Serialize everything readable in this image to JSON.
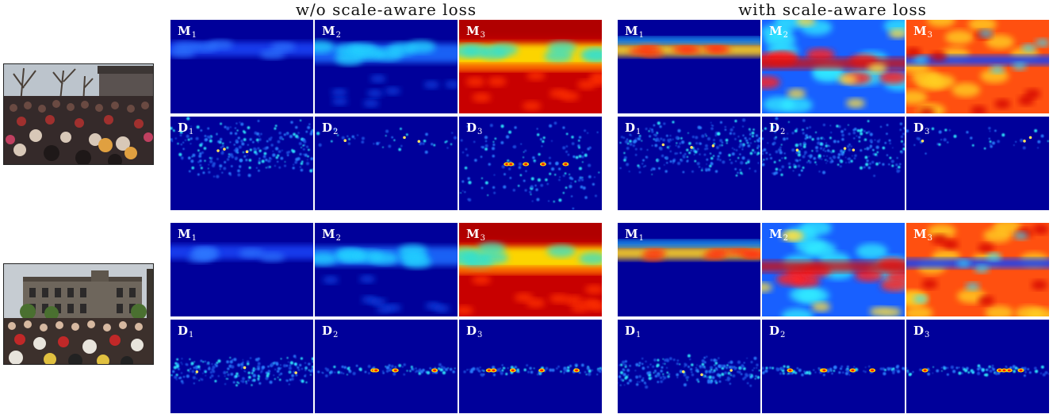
{
  "headings": {
    "without": "w/o scale-aware loss",
    "with": "with scale-aware loss"
  },
  "groups": [
    {
      "photo": "crowd-photo-1",
      "without": {
        "M": [
          {
            "letter": "M",
            "sub": "1"
          },
          {
            "letter": "M",
            "sub": "2"
          },
          {
            "letter": "M",
            "sub": "3"
          }
        ],
        "D": [
          {
            "letter": "D",
            "sub": "1"
          },
          {
            "letter": "D",
            "sub": "2"
          },
          {
            "letter": "D",
            "sub": "3"
          }
        ]
      },
      "with": {
        "M": [
          {
            "letter": "M",
            "sub": "1"
          },
          {
            "letter": "M",
            "sub": "2"
          },
          {
            "letter": "M",
            "sub": "3"
          }
        ],
        "D": [
          {
            "letter": "D",
            "sub": "1"
          },
          {
            "letter": "D",
            "sub": "2"
          },
          {
            "letter": "D",
            "sub": "3"
          }
        ]
      }
    },
    {
      "photo": "crowd-photo-2",
      "without": {
        "M": [
          {
            "letter": "M",
            "sub": "1"
          },
          {
            "letter": "M",
            "sub": "2"
          },
          {
            "letter": "M",
            "sub": "3"
          }
        ],
        "D": [
          {
            "letter": "D",
            "sub": "1"
          },
          {
            "letter": "D",
            "sub": "2"
          },
          {
            "letter": "D",
            "sub": "3"
          }
        ]
      },
      "with": {
        "M": [
          {
            "letter": "M",
            "sub": "1"
          },
          {
            "letter": "M",
            "sub": "2"
          },
          {
            "letter": "M",
            "sub": "3"
          }
        ],
        "D": [
          {
            "letter": "D",
            "sub": "1"
          },
          {
            "letter": "D",
            "sub": "2"
          },
          {
            "letter": "D",
            "sub": "3"
          }
        ]
      }
    }
  ],
  "colors": {
    "jet_low": "#00008f",
    "jet_mid": "#00ffff",
    "jet_high": "#ff2000",
    "jet_max": "#900000"
  }
}
